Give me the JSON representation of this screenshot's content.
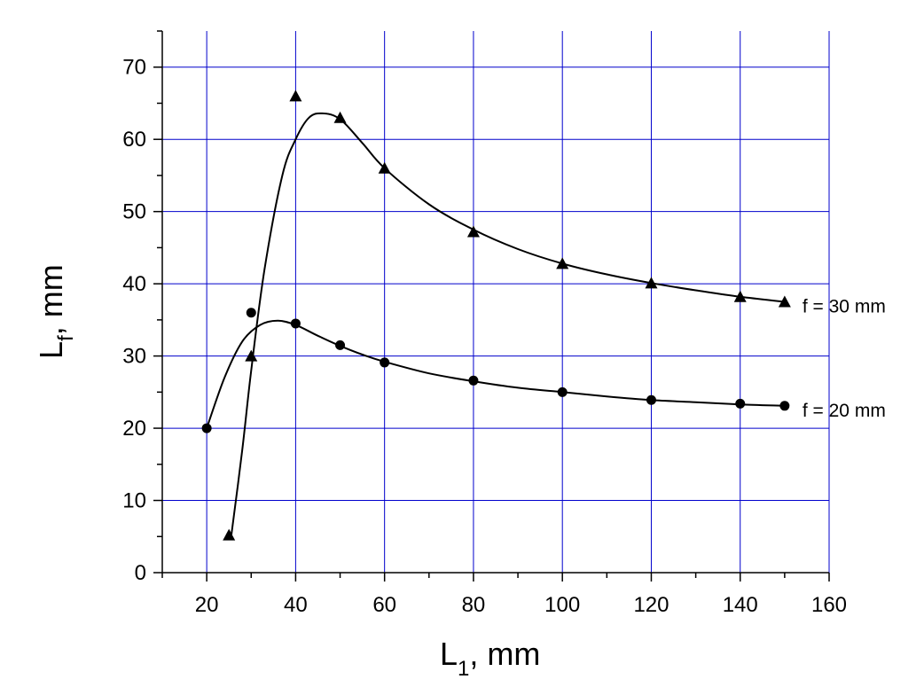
{
  "chart_data": {
    "type": "scatter",
    "title": "",
    "x_axis": {
      "label_main": "L",
      "label_sub": "1",
      "label_suffix": ", mm",
      "range": [
        10,
        160
      ],
      "major_ticks": [
        20,
        40,
        60,
        80,
        100,
        120,
        140,
        160
      ],
      "minor_step": 10
    },
    "y_axis": {
      "label_main": "L",
      "label_sub": "f",
      "label_suffix": ", mm",
      "range": [
        0,
        75
      ],
      "major_ticks": [
        0,
        10,
        20,
        30,
        40,
        50,
        60,
        70
      ],
      "minor_step": 5
    },
    "grid": true,
    "grid_color": "#0000cc",
    "series": [
      {
        "name": "f = 30 mm",
        "marker": "triangle",
        "x": [
          25,
          30,
          40,
          50,
          60,
          80,
          100,
          120,
          140,
          150
        ],
        "y": [
          5.2,
          30,
          66,
          63,
          56,
          47.2,
          42.8,
          40.1,
          38.2,
          37.5
        ],
        "fit_curve": [
          [
            25.5,
            5
          ],
          [
            28,
            17
          ],
          [
            30,
            28
          ],
          [
            33,
            42
          ],
          [
            37,
            55
          ],
          [
            40,
            60
          ],
          [
            43,
            63
          ],
          [
            46,
            63.6
          ],
          [
            50,
            62.8
          ],
          [
            55,
            59.5
          ],
          [
            60,
            56
          ],
          [
            70,
            51
          ],
          [
            80,
            47.5
          ],
          [
            90,
            44.8
          ],
          [
            100,
            42.8
          ],
          [
            110,
            41.3
          ],
          [
            120,
            40.1
          ],
          [
            130,
            39.1
          ],
          [
            140,
            38.2
          ],
          [
            150,
            37.5
          ]
        ]
      },
      {
        "name": "f = 20 mm",
        "marker": "circle",
        "x": [
          20,
          30,
          40,
          50,
          60,
          80,
          100,
          120,
          140,
          150
        ],
        "y": [
          20,
          36,
          34.5,
          31.5,
          29.1,
          26.6,
          25,
          23.9,
          23.4,
          23.1
        ],
        "fit_curve": [
          [
            20,
            20
          ],
          [
            24,
            27
          ],
          [
            28,
            32
          ],
          [
            32,
            34.3
          ],
          [
            36,
            34.9
          ],
          [
            40,
            34.3
          ],
          [
            45,
            32.8
          ],
          [
            50,
            31.4
          ],
          [
            55,
            30.2
          ],
          [
            60,
            29.2
          ],
          [
            70,
            27.6
          ],
          [
            80,
            26.5
          ],
          [
            90,
            25.6
          ],
          [
            100,
            25
          ],
          [
            110,
            24.4
          ],
          [
            120,
            23.9
          ],
          [
            130,
            23.6
          ],
          [
            140,
            23.3
          ],
          [
            150,
            23.1
          ]
        ]
      }
    ]
  }
}
